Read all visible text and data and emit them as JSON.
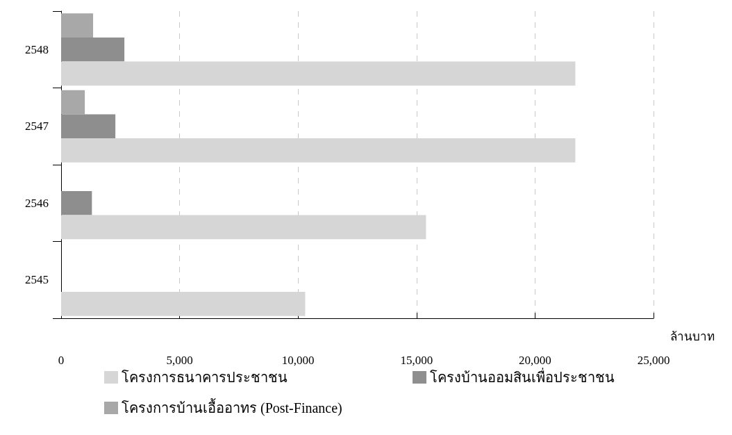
{
  "chart_data": {
    "type": "bar",
    "orientation": "horizontal",
    "categories": [
      "2548",
      "2547",
      "2546",
      "2545"
    ],
    "xlabel": "ล้านบาท",
    "xlim": [
      0,
      25000
    ],
    "xticks": [
      {
        "value": 0,
        "label": "0"
      },
      {
        "value": 5000,
        "label": "5,000"
      },
      {
        "value": 10000,
        "label": "10,000"
      },
      {
        "value": 15000,
        "label": "15,000"
      },
      {
        "value": 20000,
        "label": "20,000"
      },
      {
        "value": 25000,
        "label": "25,000"
      }
    ],
    "grid": "x",
    "legend": "bottom",
    "series": [
      {
        "name": "โครงการธนาคารประชาชน",
        "color": "#d6d6d6",
        "values": [
          21700,
          21700,
          15400,
          10300
        ]
      },
      {
        "name": "โครงบ้านออมสินเพื่อประชาชน",
        "color": "#8e8e8e",
        "values": [
          2670,
          2290,
          1300,
          null
        ]
      },
      {
        "name": "โครงการบ้านเอื้ออาทร (Post-Finance)",
        "color": "#a8a8a8",
        "values": [
          1350,
          1000,
          null,
          null
        ]
      }
    ]
  }
}
